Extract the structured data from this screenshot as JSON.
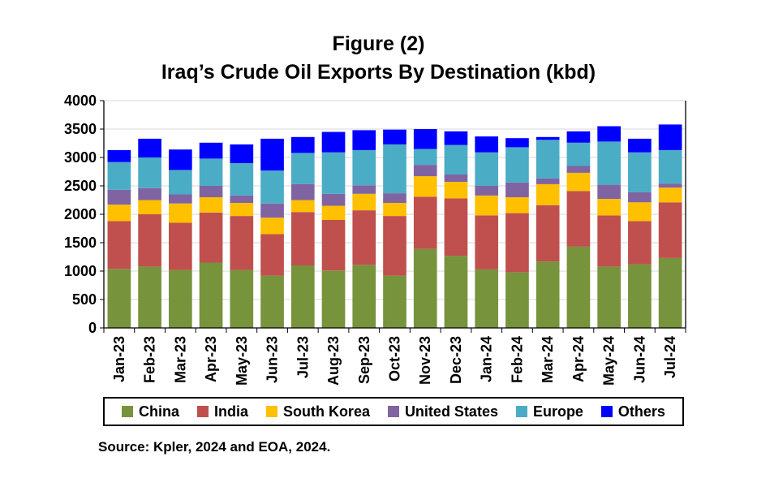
{
  "chart_data": {
    "type": "bar",
    "stacked": true,
    "title": "Figure (2)",
    "subtitle": "Iraq’s Crude Oil Exports By Destination (kbd)",
    "xlabel": "",
    "ylabel": "",
    "ylim": [
      0,
      4000
    ],
    "yticks": [
      0,
      500,
      1000,
      1500,
      2000,
      2500,
      3000,
      3500,
      4000
    ],
    "grid": true,
    "legend_position": "bottom",
    "categories": [
      "Jan-23",
      "Feb-23",
      "Mar-23",
      "Apr-23",
      "May-23",
      "Jun-23",
      "Jul-23",
      "Aug-23",
      "Sep-23",
      "Oct-23",
      "Nov-23",
      "Dec-23",
      "Jan-24",
      "Feb-24",
      "Mar-24",
      "Apr-24",
      "May-24",
      "Jun-24",
      "Jul-24"
    ],
    "series": [
      {
        "name": "China",
        "color": "#77933C",
        "values": [
          1040,
          1080,
          1020,
          1150,
          1020,
          920,
          1100,
          1010,
          1110,
          920,
          1390,
          1270,
          1030,
          980,
          1170,
          1430,
          1080,
          1120,
          1230
        ]
      },
      {
        "name": "India",
        "color": "#C0504D",
        "values": [
          840,
          920,
          830,
          880,
          950,
          730,
          940,
          890,
          960,
          1050,
          920,
          1010,
          950,
          1040,
          990,
          980,
          900,
          760,
          980
        ]
      },
      {
        "name": "South Korea",
        "color": "#FFC000",
        "values": [
          290,
          250,
          340,
          270,
          230,
          290,
          210,
          250,
          290,
          230,
          360,
          290,
          350,
          280,
          370,
          320,
          290,
          330,
          260
        ]
      },
      {
        "name": "United States",
        "color": "#8064A2",
        "values": [
          260,
          210,
          160,
          200,
          130,
          250,
          280,
          210,
          150,
          170,
          200,
          130,
          170,
          260,
          100,
          120,
          250,
          180,
          70
        ]
      },
      {
        "name": "Europe",
        "color": "#4BACC6",
        "values": [
          490,
          540,
          430,
          480,
          570,
          580,
          550,
          730,
          620,
          860,
          280,
          520,
          590,
          620,
          680,
          410,
          760,
          700,
          590
        ]
      },
      {
        "name": "Others",
        "color": "#0000FF",
        "values": [
          210,
          330,
          360,
          280,
          330,
          560,
          280,
          360,
          350,
          260,
          350,
          240,
          280,
          160,
          50,
          200,
          270,
          240,
          450
        ]
      }
    ]
  },
  "source": "Source: Kpler, 2024 and EOA, 2024."
}
